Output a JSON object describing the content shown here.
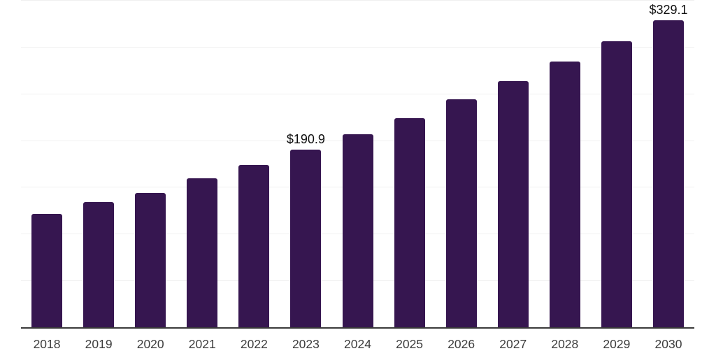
{
  "chart_data": {
    "type": "bar",
    "title": "",
    "xlabel": "",
    "ylabel": "",
    "categories": [
      "2018",
      "2019",
      "2020",
      "2021",
      "2022",
      "2023",
      "2024",
      "2025",
      "2026",
      "2027",
      "2028",
      "2029",
      "2030"
    ],
    "values": [
      121.6,
      134.3,
      144.4,
      160.3,
      174.5,
      190.9,
      207.2,
      224.7,
      244.3,
      264.3,
      285.0,
      306.6,
      329.1
    ],
    "value_labels": [
      "",
      "",
      "",
      "",
      "",
      "$190.9",
      "",
      "",
      "",
      "",
      "",
      "",
      "$329.1"
    ],
    "ylim": [
      0,
      350
    ],
    "grid_step": 50,
    "grid": "horizontal-only",
    "legend": "none",
    "y_tick_labels": "none",
    "currency_prefix": "$",
    "colors": {
      "background": "#ffffff",
      "bar": "#361650",
      "grid": "#f0f0f0",
      "axis": "#3a3a3a",
      "tick_label": "#3d3d3d",
      "value_label": "#0f0f0f"
    }
  }
}
